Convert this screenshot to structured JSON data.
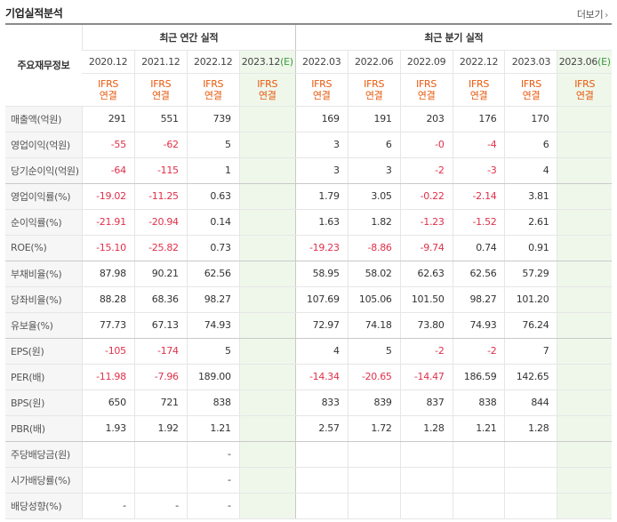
{
  "header": {
    "title": "기업실적분석",
    "more_label": "더보기"
  },
  "table": {
    "row_header_label": "주요재무정보",
    "annual_group_label": "최근 연간 실적",
    "quarter_group_label": "최근 분기 실적",
    "annual_periods": [
      "2020.12",
      "2021.12",
      "2022.12",
      "2023.12"
    ],
    "annual_estimate_tag": "(E)",
    "quarter_periods": [
      "2022.03",
      "2022.06",
      "2022.09",
      "2022.12",
      "2023.03",
      "2023.06"
    ],
    "quarter_estimate_tag": "(E)",
    "ifrs_line1": "IFRS",
    "ifrs_line2": "연결",
    "rows": [
      {
        "label": "매출액(억원)",
        "annual": [
          "291",
          "551",
          "739",
          ""
        ],
        "quarter": [
          "169",
          "191",
          "203",
          "176",
          "170",
          ""
        ]
      },
      {
        "label": "영업이익(억원)",
        "annual": [
          "-55",
          "-62",
          "5",
          ""
        ],
        "quarter": [
          "3",
          "6",
          "-0",
          "-4",
          "6",
          ""
        ]
      },
      {
        "label": "당기순이익(억원)",
        "annual": [
          "-64",
          "-115",
          "1",
          ""
        ],
        "quarter": [
          "3",
          "3",
          "-2",
          "-3",
          "4",
          ""
        ]
      },
      {
        "label": "영업이익률(%)",
        "annual": [
          "-19.02",
          "-11.25",
          "0.63",
          ""
        ],
        "quarter": [
          "1.79",
          "3.05",
          "-0.22",
          "-2.14",
          "3.81",
          ""
        ]
      },
      {
        "label": "순이익률(%)",
        "annual": [
          "-21.91",
          "-20.94",
          "0.14",
          ""
        ],
        "quarter": [
          "1.63",
          "1.82",
          "-1.23",
          "-1.52",
          "2.61",
          ""
        ]
      },
      {
        "label": "ROE(%)",
        "annual": [
          "-15.10",
          "-25.82",
          "0.73",
          ""
        ],
        "quarter": [
          "-19.23",
          "-8.86",
          "-9.74",
          "0.74",
          "0.91",
          ""
        ]
      },
      {
        "label": "부채비율(%)",
        "annual": [
          "87.98",
          "90.21",
          "62.56",
          ""
        ],
        "quarter": [
          "58.95",
          "58.02",
          "62.63",
          "62.56",
          "57.29",
          ""
        ]
      },
      {
        "label": "당좌비율(%)",
        "annual": [
          "88.28",
          "68.36",
          "98.27",
          ""
        ],
        "quarter": [
          "107.69",
          "105.06",
          "101.50",
          "98.27",
          "101.20",
          ""
        ]
      },
      {
        "label": "유보율(%)",
        "annual": [
          "77.73",
          "67.13",
          "74.93",
          ""
        ],
        "quarter": [
          "72.97",
          "74.18",
          "73.80",
          "74.93",
          "76.24",
          ""
        ]
      },
      {
        "label": "EPS(원)",
        "annual": [
          "-105",
          "-174",
          "5",
          ""
        ],
        "quarter": [
          "4",
          "5",
          "-2",
          "-2",
          "7",
          ""
        ]
      },
      {
        "label": "PER(배)",
        "annual": [
          "-11.98",
          "-7.96",
          "189.00",
          ""
        ],
        "quarter": [
          "-14.34",
          "-20.65",
          "-14.47",
          "186.59",
          "142.65",
          ""
        ]
      },
      {
        "label": "BPS(원)",
        "annual": [
          "650",
          "721",
          "838",
          ""
        ],
        "quarter": [
          "833",
          "839",
          "837",
          "838",
          "844",
          ""
        ]
      },
      {
        "label": "PBR(배)",
        "annual": [
          "1.93",
          "1.92",
          "1.21",
          ""
        ],
        "quarter": [
          "2.57",
          "1.72",
          "1.28",
          "1.21",
          "1.28",
          ""
        ]
      },
      {
        "label": "주당배당금(원)",
        "annual": [
          "",
          "",
          "-",
          ""
        ],
        "quarter": [
          "",
          "",
          "",
          "",
          "",
          ""
        ]
      },
      {
        "label": "시가배당률(%)",
        "annual": [
          "",
          "",
          "-",
          ""
        ],
        "quarter": [
          "",
          "",
          "",
          "",
          "",
          ""
        ]
      },
      {
        "label": "배당성향(%)",
        "annual": [
          "-",
          "-",
          "-",
          ""
        ],
        "quarter": [
          "",
          "",
          "",
          "",
          "",
          ""
        ]
      }
    ]
  }
}
